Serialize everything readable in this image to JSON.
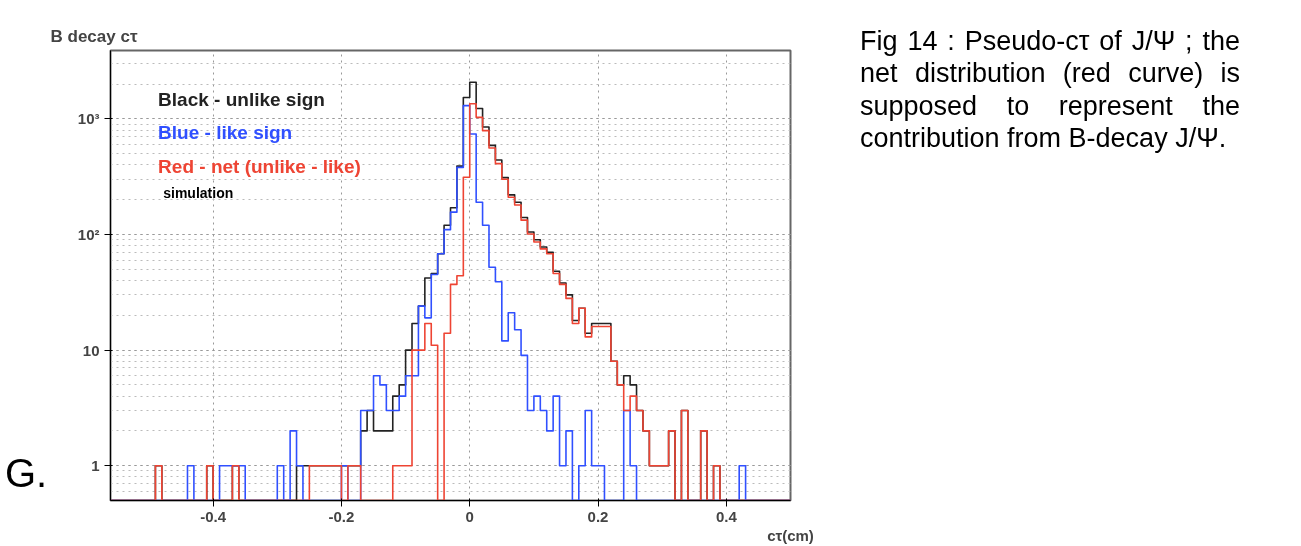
{
  "chart_data": {
    "type": "histogram",
    "title": "B decay cτ",
    "xlabel": "cτ(cm)",
    "bins": [
      -0.56,
      -0.55,
      -0.54,
      -0.53,
      -0.52,
      -0.51,
      -0.5,
      -0.49,
      -0.48,
      -0.47,
      -0.46,
      -0.45,
      -0.44,
      -0.43,
      -0.42,
      -0.41,
      -0.4,
      -0.39,
      -0.38,
      -0.37,
      -0.36,
      -0.35,
      -0.34,
      -0.33,
      -0.32,
      -0.31,
      -0.3,
      -0.29,
      -0.28,
      -0.27,
      -0.26,
      -0.25,
      -0.24,
      -0.23,
      -0.22,
      -0.21,
      -0.2,
      -0.19,
      -0.18,
      -0.17,
      -0.16,
      -0.15,
      -0.14,
      -0.13,
      -0.12,
      -0.11,
      -0.1,
      -0.09,
      -0.08,
      -0.07,
      -0.06,
      -0.05,
      -0.04,
      -0.03,
      -0.02,
      -0.01,
      0,
      0.01,
      0.02,
      0.03,
      0.04,
      0.05,
      0.06,
      0.07,
      0.08,
      0.09,
      0.1,
      0.11,
      0.12,
      0.13,
      0.14,
      0.15,
      0.16,
      0.17,
      0.18,
      0.19,
      0.2,
      0.21,
      0.22,
      0.23,
      0.24,
      0.25,
      0.26,
      0.27,
      0.28,
      0.29,
      0.3,
      0.31,
      0.32,
      0.33,
      0.34,
      0.35,
      0.36,
      0.37,
      0.38,
      0.39,
      0.4,
      0.41,
      0.42,
      0.43,
      0.44,
      0.45,
      0.46,
      0.47,
      0.48,
      0.49,
      0.5
    ],
    "series": [
      {
        "name": "Black - unlike sign",
        "color": "#222222",
        "values": [
          null,
          null,
          null,
          null,
          null,
          null,
          null,
          1,
          null,
          null,
          null,
          null,
          null,
          null,
          null,
          1,
          null,
          null,
          null,
          1,
          null,
          null,
          null,
          null,
          null,
          null,
          null,
          null,
          null,
          1,
          1,
          1,
          1,
          1,
          1,
          1,
          1,
          1,
          1,
          2,
          3,
          2,
          2,
          2,
          4,
          5,
          10,
          17,
          24,
          42,
          46,
          68,
          120,
          170,
          390,
          1530,
          2070,
          1230,
          850,
          590,
          440,
          310,
          220,
          190,
          140,
          105,
          90,
          78,
          70,
          48,
          38,
          30,
          18,
          23,
          14,
          17,
          17,
          17,
          8,
          5,
          6,
          5,
          3,
          2,
          1,
          1,
          1,
          2,
          null,
          3,
          null,
          null,
          2,
          null,
          1,
          null,
          null,
          null,
          null,
          null,
          null,
          null,
          null,
          null,
          null,
          null
        ]
      },
      {
        "name": "Blue - like sign",
        "color": "#3050ff",
        "values": [
          null,
          null,
          null,
          null,
          null,
          null,
          null,
          null,
          null,
          null,
          null,
          null,
          1,
          null,
          null,
          null,
          null,
          1,
          1,
          1,
          1,
          null,
          null,
          null,
          null,
          null,
          1,
          null,
          2,
          1,
          null,
          null,
          null,
          null,
          null,
          null,
          1,
          null,
          null,
          3,
          3,
          6,
          5,
          3,
          3,
          4,
          6,
          6,
          24,
          19,
          45,
          68,
          110,
          156,
          380,
          1300,
          740,
          190,
          120,
          52,
          39,
          12,
          21,
          15,
          9,
          3,
          4,
          3,
          2,
          4,
          1,
          2,
          null,
          1,
          3,
          1,
          1,
          null,
          null,
          null,
          3,
          1,
          null,
          null,
          null,
          null,
          null,
          null,
          null,
          null,
          null,
          null,
          null,
          null,
          null,
          null,
          null,
          null,
          1,
          null,
          null,
          null,
          null,
          null,
          null,
          null
        ]
      },
      {
        "name": "Red - net (unlike - like)",
        "color": "#ee4433",
        "values": [
          null,
          null,
          null,
          null,
          null,
          null,
          null,
          1,
          null,
          null,
          null,
          null,
          null,
          null,
          null,
          1,
          null,
          null,
          null,
          1,
          null,
          null,
          null,
          null,
          null,
          null,
          null,
          null,
          null,
          null,
          null,
          1,
          1,
          1,
          1,
          1,
          null,
          1,
          1,
          null,
          null,
          null,
          null,
          null,
          1,
          1,
          1,
          10,
          10,
          17,
          11,
          null,
          14,
          37,
          44,
          312,
          1350,
          1030,
          790,
          560,
          410,
          300,
          210,
          180,
          133,
          101,
          86,
          75,
          68,
          46,
          37,
          28,
          17,
          23,
          13,
          16,
          16,
          16,
          8,
          5,
          3,
          4,
          3,
          2,
          1,
          1,
          1,
          2,
          null,
          3,
          null,
          null,
          2,
          null,
          1,
          null,
          null,
          null,
          null,
          null,
          null,
          null,
          null,
          null,
          null,
          null
        ]
      }
    ],
    "log": "y",
    "xlim": [
      -0.56,
      0.5
    ],
    "ylim": [
      0.5,
      3900
    ],
    "xticks": [
      -0.4,
      -0.2,
      0,
      0.2,
      0.4
    ],
    "yticks": [
      1,
      10,
      {
        "value": 100,
        "label": "10²"
      },
      {
        "value": 1000,
        "label": "10³"
      }
    ],
    "grid": true,
    "annotations": [
      "simulation",
      "Fig 14 : Pseudo-cτ of J/Ψ ; the net distribution (red curve) is supposed to represent the contribution from B-decay J/Ψ.",
      "G."
    ]
  }
}
